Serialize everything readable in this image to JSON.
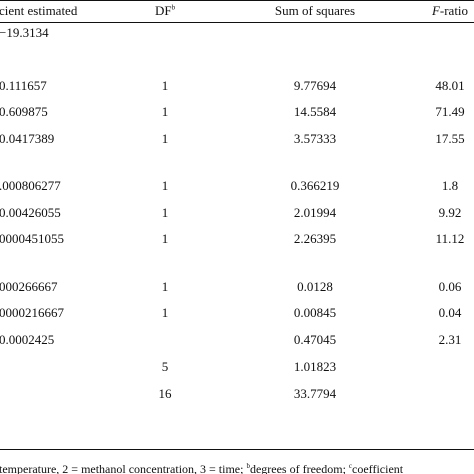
{
  "table": {
    "header": {
      "coefficient": "cient estimated",
      "df": "DF",
      "df_sup": "b",
      "ss": "Sum of squares",
      "f_italic": "F",
      "f_rest": "-ratio"
    },
    "rows": [
      {
        "coef": "−19.3134",
        "df": "",
        "ss": "",
        "f": ""
      },
      {
        "coef": "0.111657",
        "df": "1",
        "ss": "9.77694",
        "f": "48.01"
      },
      {
        "coef": "0.609875",
        "df": "1",
        "ss": "14.5584",
        "f": "71.49"
      },
      {
        "coef": "0.0417389",
        "df": "1",
        "ss": "3.57333",
        "f": "17.55"
      },
      {
        "coef": ".000806277",
        "df": "1",
        "ss": "0.366219",
        "f": "1.8"
      },
      {
        "coef": "0.00426055",
        "df": "1",
        "ss": "2.01994",
        "f": "9.92"
      },
      {
        "coef": "0000451055",
        "df": "1",
        "ss": "2.26395",
        "f": "11.12"
      },
      {
        "coef": "000266667",
        "df": "1",
        "ss": "0.0128",
        "f": "0.06"
      },
      {
        "coef": "0000216667",
        "df": "1",
        "ss": "0.00845",
        "f": "0.04"
      },
      {
        "coef": "0.0002425",
        "df": "",
        "ss": "0.47045",
        "f": "2.31"
      },
      {
        "coef": "",
        "df": "5",
        "ss": "1.01823",
        "f": ""
      },
      {
        "coef": "",
        "df": "16",
        "ss": "33.7794",
        "f": ""
      }
    ]
  },
  "footnote": {
    "part1": "temperature, 2 = methanol concentration, 3 = time; ",
    "sup_b": "b",
    "part2": "degrees of freedom; ",
    "sup_c": "c",
    "part3": "coefficient"
  }
}
